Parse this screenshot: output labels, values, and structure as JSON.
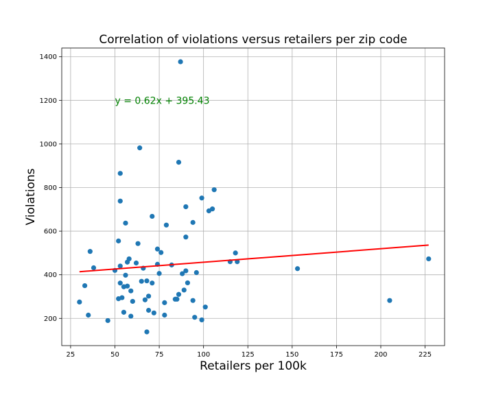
{
  "chart_data": {
    "type": "scatter",
    "title": "Correlation of violations versus retailers per zip code",
    "xlabel": "Retailers per 100k",
    "ylabel": "Violations",
    "xlim": [
      20,
      236
    ],
    "ylim": [
      75,
      1440
    ],
    "xticks": [
      25,
      50,
      75,
      100,
      125,
      150,
      175,
      200,
      225
    ],
    "yticks": [
      200,
      400,
      600,
      800,
      1000,
      1200,
      1400
    ],
    "grid": true,
    "point_color": "#1f77b4",
    "line_color": "#ff0000",
    "annotation_color": "#008000",
    "annotation": {
      "text": "y = 0.62x + 395.43",
      "x": 50,
      "y": 1200
    },
    "regression": {
      "slope": 0.62,
      "intercept": 395.43,
      "x_range": [
        30,
        227
      ]
    },
    "points": [
      [
        30,
        275
      ],
      [
        33,
        350
      ],
      [
        35,
        215
      ],
      [
        36,
        507
      ],
      [
        38,
        432
      ],
      [
        46,
        190
      ],
      [
        50,
        420
      ],
      [
        52,
        290
      ],
      [
        52,
        555
      ],
      [
        53,
        865
      ],
      [
        53,
        738
      ],
      [
        53,
        440
      ],
      [
        53,
        362
      ],
      [
        54,
        295
      ],
      [
        55,
        228
      ],
      [
        55,
        345
      ],
      [
        56,
        398
      ],
      [
        56,
        637
      ],
      [
        57,
        458
      ],
      [
        57,
        348
      ],
      [
        58,
        473
      ],
      [
        59,
        210
      ],
      [
        59,
        326
      ],
      [
        60,
        278
      ],
      [
        62,
        454
      ],
      [
        63,
        543
      ],
      [
        64,
        982
      ],
      [
        65,
        370
      ],
      [
        66,
        430
      ],
      [
        67,
        285
      ],
      [
        68,
        372
      ],
      [
        68,
        138
      ],
      [
        69,
        302
      ],
      [
        69,
        237
      ],
      [
        71,
        668
      ],
      [
        71,
        362
      ],
      [
        72,
        225
      ],
      [
        74,
        518
      ],
      [
        74,
        448
      ],
      [
        75,
        406
      ],
      [
        76,
        502
      ],
      [
        78,
        272
      ],
      [
        78,
        215
      ],
      [
        79,
        628
      ],
      [
        82,
        445
      ],
      [
        84,
        288
      ],
      [
        85,
        288
      ],
      [
        86,
        916
      ],
      [
        86,
        310
      ],
      [
        87,
        1377
      ],
      [
        88,
        405
      ],
      [
        89,
        330
      ],
      [
        90,
        573
      ],
      [
        90,
        712
      ],
      [
        90,
        418
      ],
      [
        91,
        363
      ],
      [
        94,
        640
      ],
      [
        94,
        282
      ],
      [
        95,
        205
      ],
      [
        96,
        410
      ],
      [
        99,
        752
      ],
      [
        99,
        193
      ],
      [
        101,
        252
      ],
      [
        103,
        693
      ],
      [
        105,
        702
      ],
      [
        106,
        790
      ],
      [
        115,
        460
      ],
      [
        118,
        500
      ],
      [
        119,
        460
      ],
      [
        153,
        428
      ],
      [
        205,
        282
      ],
      [
        227,
        473
      ]
    ]
  }
}
